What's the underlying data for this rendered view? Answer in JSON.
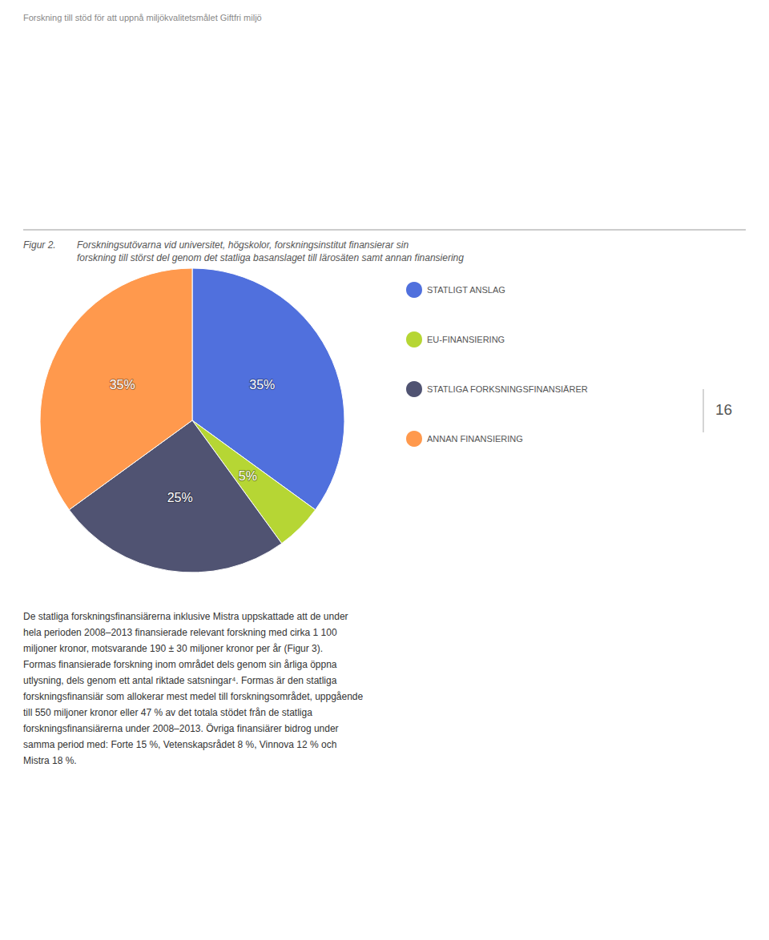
{
  "chart_data": {
    "type": "pie",
    "title": "Figur 2.",
    "subtitle": "Forskningsutövarna vid universitet, högskolor, forskningsinstitut finansierar sin\nforskning till störst del genom det statliga basanslaget till lärosäten samt annan finansiering",
    "categories": [
      "STATLIGT ANSLAG",
      "EU-FINANSIERING",
      "STATLIGA FORKSNINGSFINANSIÄRER",
      "ANNAN FINANSIERING"
    ],
    "values": [
      35,
      5,
      25,
      35
    ],
    "value_labels": [
      "35%",
      "5%",
      "25%",
      "35%"
    ],
    "data_labels": true,
    "legend": "right",
    "annotations": [
      "Forskning till stöd för att uppnå miljökvalitetsmålet Giftfri miljö",
      "16",
      "De statliga forskningsfinansiärerna inklusive Mistra uppskattade att de under\nhela perioden 2008–2013 finansierade relevant forskning med cirka 1 100\nmiljoner kronor, motsvarande 190 ± 30 miljoner kronor per år (Figur 3).\nFormas finansierade forskning inom området dels genom sin årliga öppna\nutlysning, dels genom ett antal riktade satsningar⁴. Formas är den statliga\nforskningsfinansiär som allokerar mest medel till forskningsområdet, uppgående\ntill 550 miljoner kronor eller 47 % av det totala stödet från de statliga\nforskningsfinansiärerna under 2008–2013. Övriga finansiärer bidrog under\nsamma period med: Forte 15 %, Vetenskapsrådet 8 %, Vinnova 12 % och\nMistra 18 %."
    ]
  }
}
